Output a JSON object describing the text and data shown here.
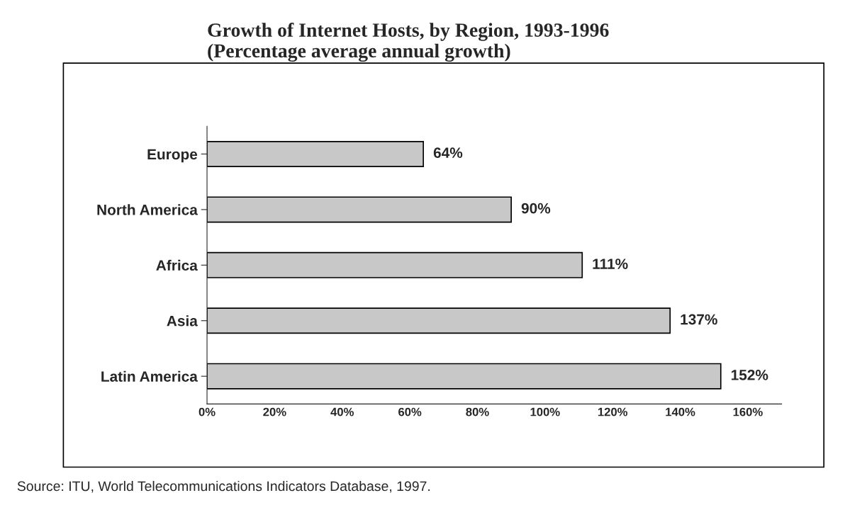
{
  "chart_data": {
    "type": "bar",
    "orientation": "horizontal",
    "title": "Growth of Internet Hosts, by Region, 1993-1996\n(Percentage average annual growth)",
    "categories": [
      "Europe",
      "North America",
      "Africa",
      "Asia",
      "Latin America"
    ],
    "values": [
      64,
      90,
      111,
      137,
      152
    ],
    "value_labels": [
      "64%",
      "90%",
      "111%",
      "137%",
      "152%"
    ],
    "color": "#c8c8c8",
    "xlim": [
      0,
      170
    ],
    "xticks": [
      {
        "value": 0,
        "label": "0%"
      },
      {
        "value": 20,
        "label": "20%"
      },
      {
        "value": 40,
        "label": "40%"
      },
      {
        "value": 60,
        "label": "60%"
      },
      {
        "value": 80,
        "label": "80%"
      },
      {
        "value": 100,
        "label": "100%"
      },
      {
        "value": 120,
        "label": "120%"
      },
      {
        "value": 140,
        "label": "140%"
      },
      {
        "value": 160,
        "label": "160%"
      }
    ],
    "grid": false,
    "annotations": [
      "Source: ITU, World Telecommunications Indicators Database, 1997."
    ]
  }
}
